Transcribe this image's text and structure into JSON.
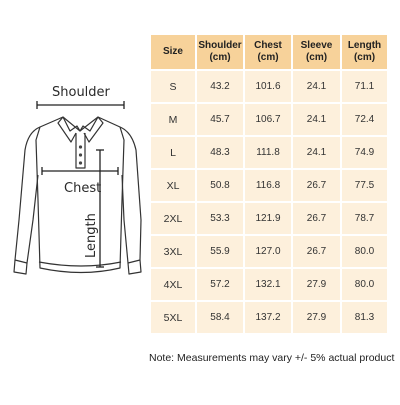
{
  "diagram": {
    "shoulder_label": "Shoulder",
    "chest_label": "Chest",
    "length_label": "Length"
  },
  "table": {
    "headers": [
      "Size",
      "Shoulder (cm)",
      "Chest (cm)",
      "Sleeve (cm)",
      "Length (cm)"
    ],
    "rows": [
      [
        "S",
        "43.2",
        "101.6",
        "24.1",
        "71.1"
      ],
      [
        "M",
        "45.7",
        "106.7",
        "24.1",
        "72.4"
      ],
      [
        "L",
        "48.3",
        "111.8",
        "24.1",
        "74.9"
      ],
      [
        "XL",
        "50.8",
        "116.8",
        "26.7",
        "77.5"
      ],
      [
        "2XL",
        "53.3",
        "121.9",
        "26.7",
        "78.7"
      ],
      [
        "3XL",
        "55.9",
        "127.0",
        "26.7",
        "80.0"
      ],
      [
        "4XL",
        "57.2",
        "132.1",
        "27.9",
        "80.0"
      ],
      [
        "5XL",
        "58.4",
        "137.2",
        "27.9",
        "81.3"
      ]
    ]
  },
  "note": "Note: Measurements may vary +/- 5% actual product",
  "colors": {
    "header_bg": "#f7d29a",
    "cell_bg": "#fdf0dc",
    "line": "#2a2a2a"
  }
}
